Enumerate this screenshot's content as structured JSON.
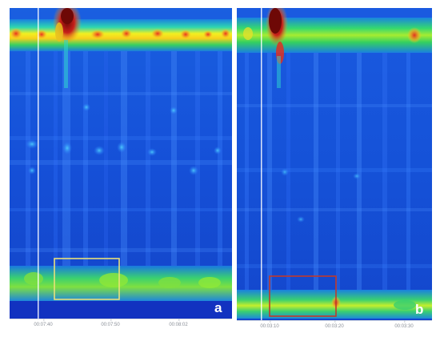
{
  "figure": {
    "panel_a": {
      "letter": "a",
      "ticks": [
        "00:07:40",
        "00:07:50",
        "00:08:02"
      ],
      "highlight_color": "#e8e07a"
    },
    "panel_b": {
      "letter": "b",
      "ticks": [
        "00:03:10",
        "00:03:20",
        "00:03:30"
      ],
      "highlight_color": "#c0392b"
    },
    "colors": {
      "background_blue": "#1447c8",
      "band_green": "#34d04a",
      "band_yellow": "#f4f01e",
      "hot_red": "#d8231c",
      "deep_red": "#7a0a08"
    }
  }
}
